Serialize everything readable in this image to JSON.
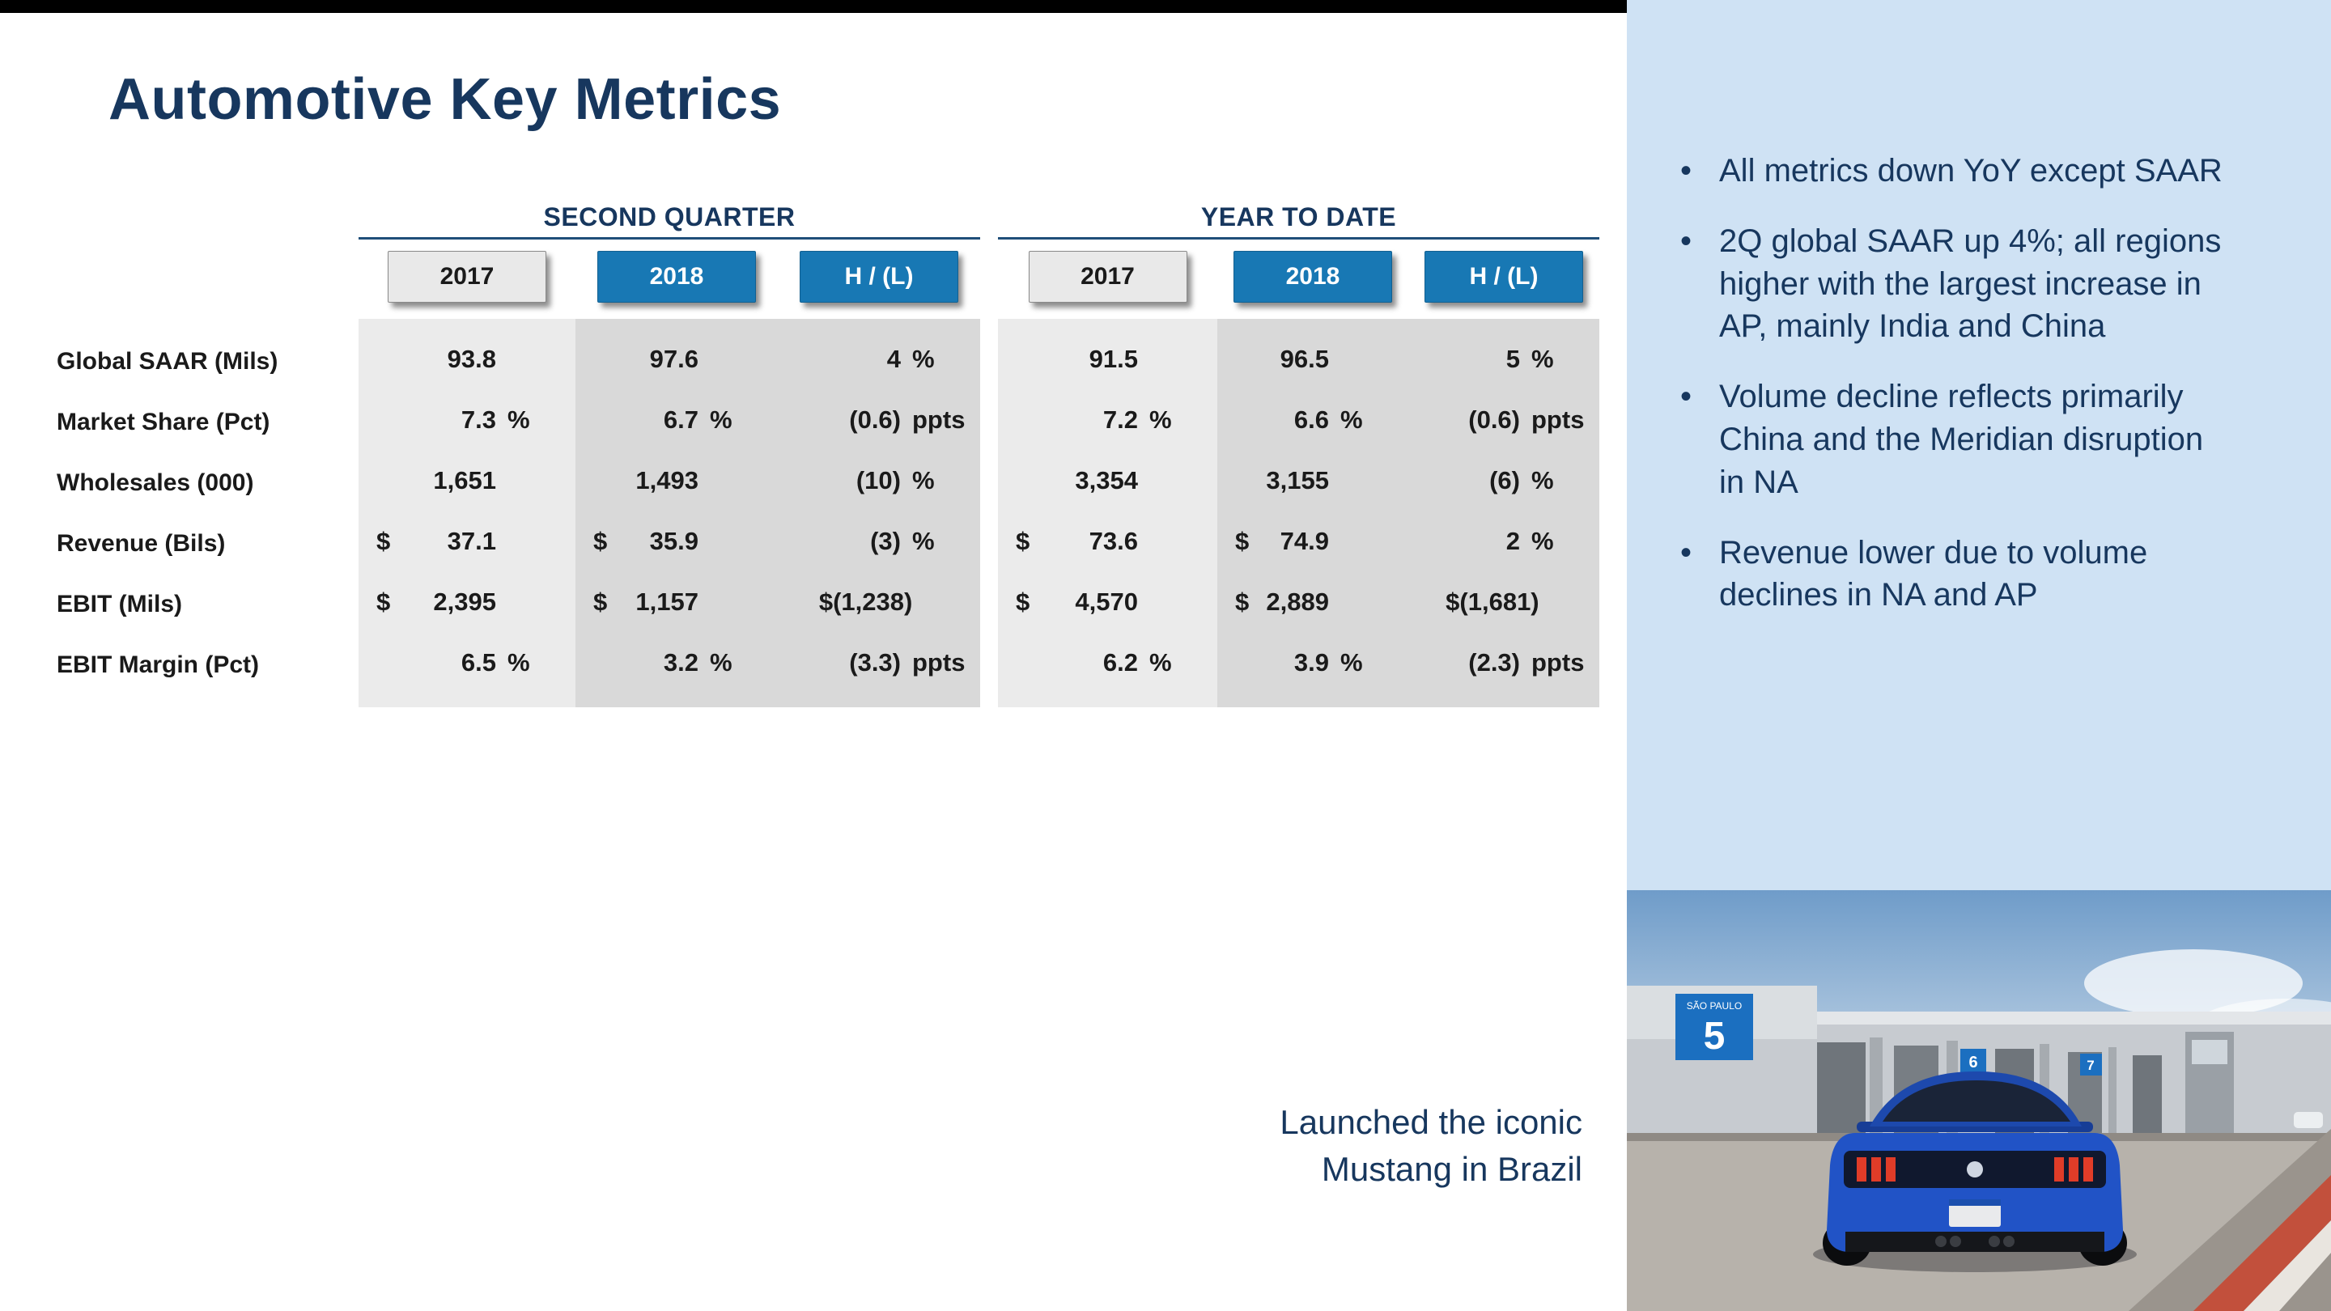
{
  "colors": {
    "accent_blue": "#1878b4",
    "panel_blue": "#cfe2f4",
    "navy": "#17375e",
    "band_light": "#ebebeb",
    "band_dark": "#d9d9d9",
    "car_blue": "#2153c6"
  },
  "slide": {
    "title": "Automotive Key Metrics",
    "caption": [
      "Launched the iconic",
      "Mustang in Brazil"
    ]
  },
  "table": {
    "group_headers": [
      "SECOND QUARTER",
      "YEAR TO DATE"
    ],
    "col_headers": [
      "2017",
      "2018",
      "H / (L)"
    ],
    "rows": [
      {
        "label": "Global SAAR (Mils)",
        "cells": [
          {
            "val": "93.8"
          },
          {
            "val": "97.6"
          },
          {
            "val": "4",
            "unit": "%"
          },
          {
            "val": "91.5"
          },
          {
            "val": "96.5"
          },
          {
            "val": "5",
            "unit": "%"
          }
        ]
      },
      {
        "label": "Market Share (Pct)",
        "cells": [
          {
            "val": "7.3",
            "unit": "%"
          },
          {
            "val": "6.7",
            "unit": "%"
          },
          {
            "val": "(0.6)",
            "unit": "ppts"
          },
          {
            "val": "7.2",
            "unit": "%"
          },
          {
            "val": "6.6",
            "unit": "%"
          },
          {
            "val": "(0.6)",
            "unit": "ppts"
          }
        ]
      },
      {
        "label": "Wholesales (000)",
        "cells": [
          {
            "val": "1,651"
          },
          {
            "val": "1,493"
          },
          {
            "val": "(10)",
            "unit": "%"
          },
          {
            "val": "3,354"
          },
          {
            "val": "3,155"
          },
          {
            "val": "(6)",
            "unit": "%"
          }
        ]
      },
      {
        "label": "Revenue (Bils)",
        "cells": [
          {
            "pre": "$",
            "val": "37.1"
          },
          {
            "pre": "$",
            "val": "35.9"
          },
          {
            "val": "(3)",
            "unit": "%"
          },
          {
            "pre": "$",
            "val": "73.6"
          },
          {
            "pre": "$",
            "val": "74.9"
          },
          {
            "val": "2",
            "unit": "%"
          }
        ]
      },
      {
        "label": "EBIT (Mils)",
        "cells": [
          {
            "pre": "$",
            "val": "2,395"
          },
          {
            "pre": "$",
            "val": "1,157"
          },
          {
            "val": "$(1,238)"
          },
          {
            "pre": "$",
            "val": "4,570"
          },
          {
            "pre": "$",
            "val": "2,889"
          },
          {
            "val": "$(1,681)"
          }
        ]
      },
      {
        "label": "EBIT Margin (Pct)",
        "cells": [
          {
            "val": "6.5",
            "unit": "%"
          },
          {
            "val": "3.2",
            "unit": "%"
          },
          {
            "val": "(3.3)",
            "unit": "ppts"
          },
          {
            "val": "6.2",
            "unit": "%"
          },
          {
            "val": "3.9",
            "unit": "%"
          },
          {
            "val": "(2.3)",
            "unit": "ppts"
          }
        ]
      }
    ]
  },
  "panel": {
    "bullets": [
      "All metrics down YoY except SAAR",
      "2Q global SAAR up 4%; all regions higher with the largest increase in AP, mainly India and China",
      "Volume decline reflects primarily China and the Meridian disruption in NA",
      "Revenue lower due to volume declines in NA and AP"
    ]
  },
  "photo": {
    "sign_location": "SÃO PAULO",
    "pit_number_1": "5",
    "pit_number_2": "6",
    "pit_number_3": "7"
  }
}
